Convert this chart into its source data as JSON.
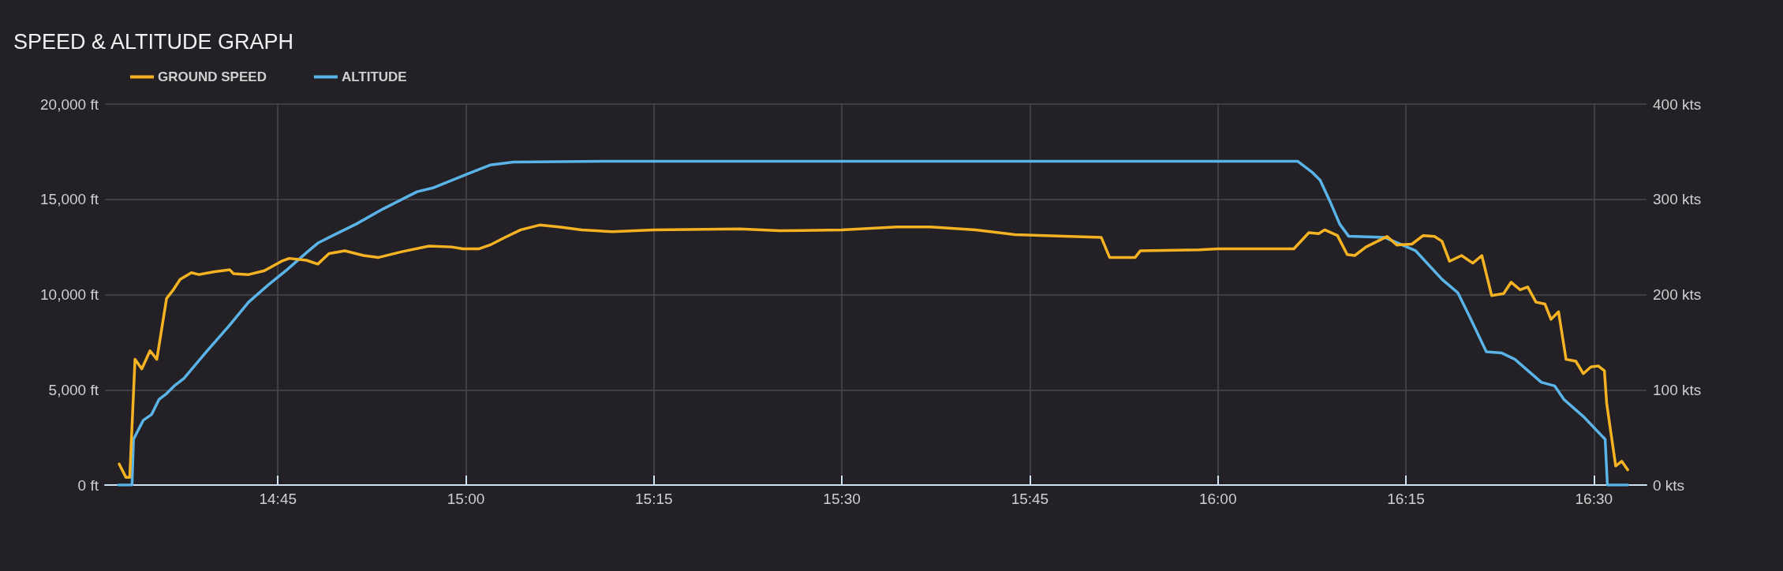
{
  "chart_data": {
    "type": "line",
    "title": "SPEED & ALTITUDE GRAPH",
    "legend": "top left",
    "grid": true,
    "marker": "none",
    "line_style": "solid",
    "xlim": [
      14.52,
      16.57
    ],
    "xticks": [
      {
        "value": 14.75,
        "label": "14:45"
      },
      {
        "value": 15,
        "label": "15:00"
      },
      {
        "value": 15.25,
        "label": "15:15"
      },
      {
        "value": 15.5,
        "label": "15:30"
      },
      {
        "value": 15.75,
        "label": "15:45"
      },
      {
        "value": 16,
        "label": "16:00"
      },
      {
        "value": 16.25,
        "label": "16:15"
      },
      {
        "value": 16.5,
        "label": "16:30"
      }
    ],
    "ylim": [
      0,
      20000
    ],
    "yticks": [
      {
        "value": 0,
        "label": "0 ft"
      },
      {
        "value": 5000,
        "label": "5,000 ft"
      },
      {
        "value": 10000,
        "label": "10,000 ft"
      },
      {
        "value": 15000,
        "label": "15,000 ft"
      },
      {
        "value": 20000,
        "label": "20,000 ft"
      }
    ],
    "y2lim": [
      0,
      400
    ],
    "y2ticks": [
      {
        "value": 0,
        "label": "0 kts"
      },
      {
        "value": 100,
        "label": "100 kts"
      },
      {
        "value": 200,
        "label": "200 kts"
      },
      {
        "value": 300,
        "label": "300 kts"
      },
      {
        "value": 400,
        "label": "400 kts"
      }
    ],
    "series": [
      {
        "name": "GROUND SPEED",
        "color": "#f5b324",
        "axis": "y2",
        "x": [
          14.539,
          14.548,
          14.553,
          14.56,
          14.569,
          14.58,
          14.589,
          14.602,
          14.61,
          14.62,
          14.635,
          14.645,
          14.666,
          14.686,
          14.691,
          14.711,
          14.732,
          14.755,
          14.765,
          14.788,
          14.803,
          14.818,
          14.839,
          14.864,
          14.884,
          14.915,
          14.951,
          14.981,
          14.996,
          15.017,
          15.032,
          15.052,
          15.073,
          15.098,
          15.124,
          15.154,
          15.195,
          15.25,
          15.364,
          15.417,
          15.5,
          15.573,
          15.618,
          15.678,
          15.73,
          15.803,
          15.845,
          15.856,
          15.89,
          15.897,
          15.975,
          16.0,
          16.101,
          16.121,
          16.134,
          16.142,
          16.159,
          16.172,
          16.182,
          16.197,
          16.225,
          16.238,
          16.258,
          16.273,
          16.288,
          16.298,
          16.308,
          16.324,
          16.339,
          16.351,
          16.364,
          16.38,
          16.39,
          16.402,
          16.412,
          16.423,
          16.435,
          16.443,
          16.453,
          16.463,
          16.476,
          16.486,
          16.496,
          16.506,
          16.514,
          16.517,
          16.529,
          16.537,
          16.545
        ],
        "values": [
          22,
          8,
          8,
          132,
          122,
          141,
          132,
          196,
          204,
          216,
          223,
          221,
          224,
          226,
          222,
          221,
          225,
          235,
          238,
          236,
          232,
          243,
          246,
          241,
          239,
          245,
          251,
          250,
          248,
          248,
          252,
          260,
          268,
          273,
          271,
          268,
          266,
          268,
          269,
          267,
          268,
          271,
          271,
          268,
          263,
          261,
          260,
          239,
          239,
          246,
          247,
          248,
          248,
          265,
          264,
          268,
          262,
          242,
          241,
          250,
          261,
          252,
          253,
          262,
          261,
          256,
          235,
          241,
          233,
          241,
          199,
          201,
          213,
          205,
          208,
          192,
          190,
          174,
          182,
          132,
          130,
          117,
          124,
          125,
          120,
          86,
          20,
          25,
          16
        ]
      },
      {
        "name": "ALTITUDE",
        "color": "#5ab4e8",
        "axis": "y",
        "x": [
          14.538,
          14.556,
          14.558,
          14.571,
          14.582,
          14.592,
          14.602,
          14.612,
          14.625,
          14.655,
          14.686,
          14.711,
          14.737,
          14.762,
          14.788,
          14.803,
          14.823,
          14.854,
          14.89,
          14.935,
          14.956,
          15.0,
          15.032,
          15.063,
          15.2,
          15.5,
          15.8,
          16.0,
          16.106,
          16.126,
          16.136,
          16.149,
          16.162,
          16.174,
          16.222,
          16.263,
          16.298,
          16.319,
          16.334,
          16.357,
          16.377,
          16.395,
          16.43,
          16.448,
          16.46,
          16.486,
          16.515,
          16.518,
          16.545
        ],
        "values": [
          0,
          0,
          2400,
          3400,
          3700,
          4500,
          4800,
          5200,
          5600,
          7000,
          8400,
          9600,
          10500,
          11300,
          12200,
          12700,
          13100,
          13700,
          14500,
          15400,
          15600,
          16300,
          16800,
          16960,
          17000,
          17000,
          17000,
          17000,
          17000,
          16400,
          16000,
          14900,
          13700,
          13060,
          13000,
          12300,
          10800,
          10100,
          8900,
          7000,
          6940,
          6600,
          5400,
          5200,
          4500,
          3600,
          2400,
          0,
          0
        ]
      }
    ]
  }
}
